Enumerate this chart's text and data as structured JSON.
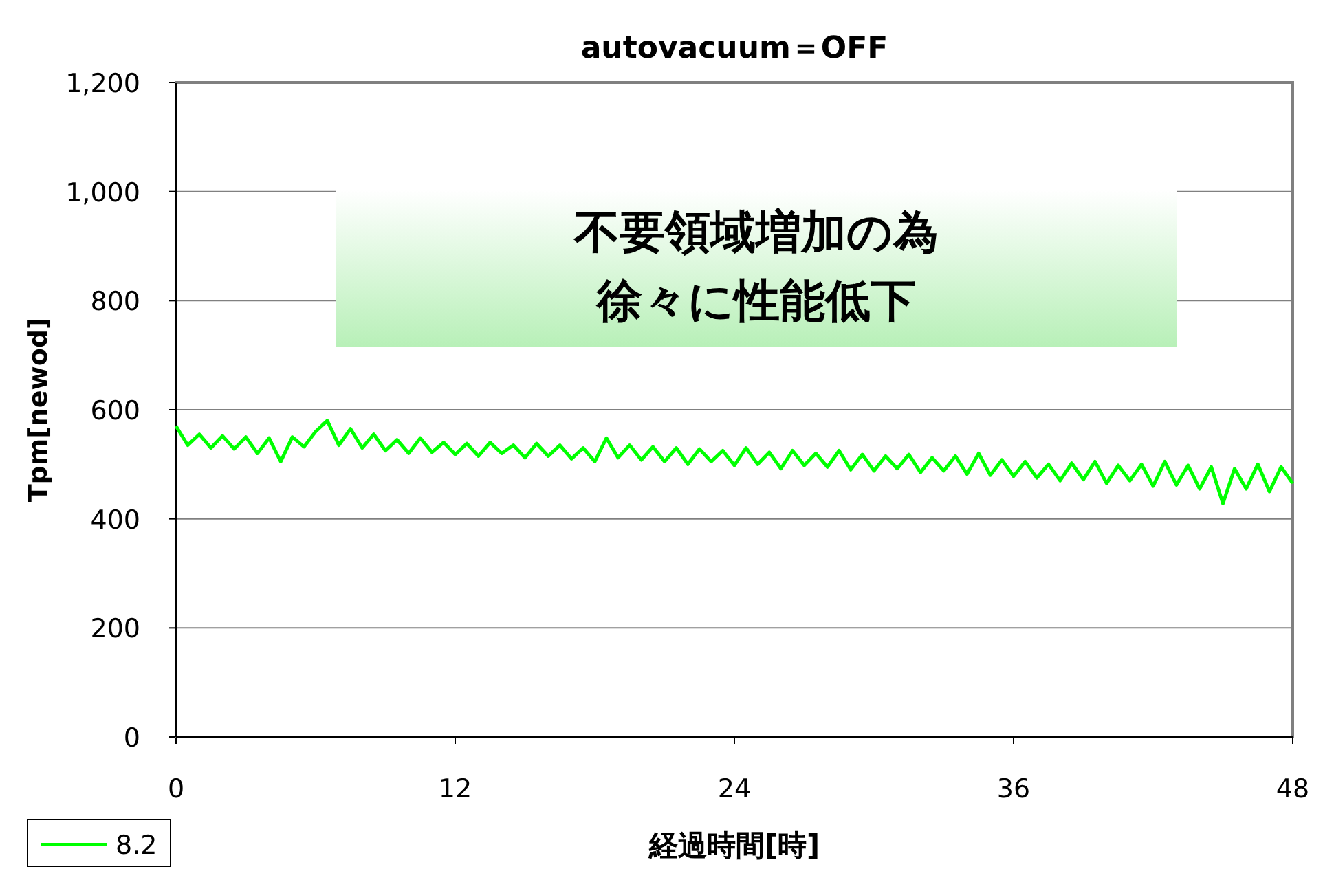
{
  "chart_data": {
    "type": "line",
    "title": "autovacuum＝OFF",
    "xlabel": "経過時間[時]",
    "ylabel": "Tpm[newod]",
    "annotations": [
      "不要領域増加の為",
      "徐々に性能低下"
    ],
    "x": [
      0,
      0.5,
      1,
      1.5,
      2,
      2.5,
      3,
      3.5,
      4,
      4.5,
      5,
      5.5,
      6,
      6.5,
      7,
      7.5,
      8,
      8.5,
      9,
      9.5,
      10,
      10.5,
      11,
      11.5,
      12,
      12.5,
      13,
      13.5,
      14,
      14.5,
      15,
      15.5,
      16,
      16.5,
      17,
      17.5,
      18,
      18.5,
      19,
      19.5,
      20,
      20.5,
      21,
      21.5,
      22,
      22.5,
      23,
      23.5,
      24,
      24.5,
      25,
      25.5,
      26,
      26.5,
      27,
      27.5,
      28,
      28.5,
      29,
      29.5,
      30,
      30.5,
      31,
      31.5,
      32,
      32.5,
      33,
      33.5,
      34,
      34.5,
      35,
      35.5,
      36,
      36.5,
      37,
      37.5,
      38,
      38.5,
      39,
      39.5,
      40,
      40.5,
      41,
      41.5,
      42,
      42.5,
      43,
      43.5,
      44,
      44.5,
      45,
      45.5,
      46,
      46.5,
      47,
      47.5,
      48
    ],
    "series": [
      {
        "name": "8.2",
        "color": "#00ff00",
        "values": [
          570,
          535,
          555,
          530,
          552,
          528,
          550,
          520,
          548,
          505,
          550,
          532,
          560,
          580,
          535,
          565,
          530,
          555,
          525,
          545,
          520,
          548,
          522,
          540,
          518,
          538,
          515,
          540,
          520,
          535,
          512,
          538,
          515,
          535,
          510,
          530,
          505,
          548,
          512,
          535,
          508,
          532,
          505,
          530,
          500,
          528,
          505,
          525,
          498,
          530,
          500,
          522,
          492,
          525,
          498,
          520,
          495,
          525,
          490,
          518,
          488,
          515,
          492,
          518,
          485,
          512,
          488,
          515,
          482,
          520,
          480,
          508,
          478,
          505,
          475,
          500,
          470,
          502,
          472,
          505,
          465,
          498,
          470,
          500,
          460,
          505,
          462,
          498,
          455,
          495,
          428,
          492,
          455,
          500,
          450,
          495,
          465
        ]
      }
    ],
    "xlim": [
      0,
      48
    ],
    "xticks": [
      0,
      12,
      24,
      36,
      48
    ],
    "ylim": [
      0,
      1200
    ],
    "yticks": [
      0,
      200,
      400,
      600,
      800,
      {
        "value": 1000,
        "label": "1,000"
      },
      {
        "value": 1200,
        "label": "1,200"
      }
    ],
    "grid": "y",
    "legend": "bottom left"
  }
}
